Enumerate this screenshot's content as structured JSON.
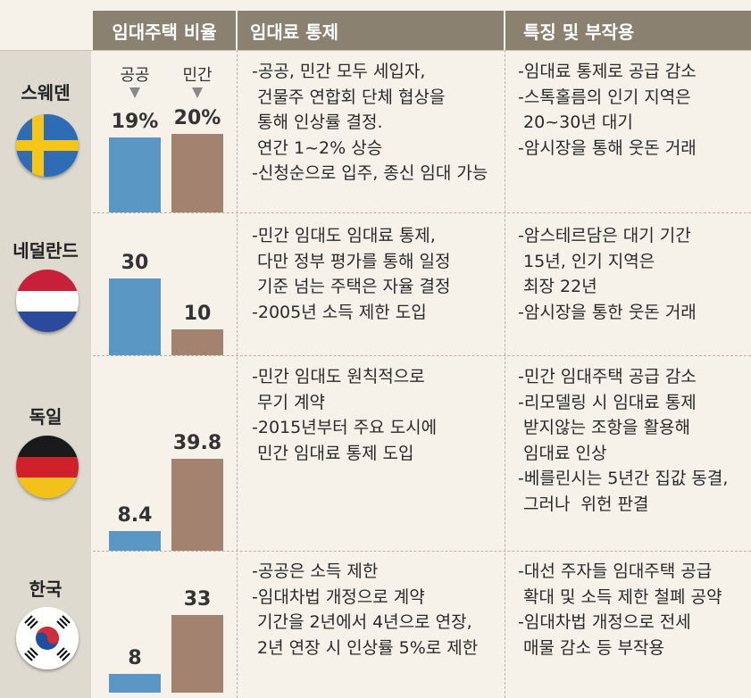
{
  "headers": {
    "col1": "임대주택 비율",
    "col2": "임대료 통제",
    "col3": "특징 및 부작용"
  },
  "legend": {
    "public": "공공",
    "private": "민간"
  },
  "colors": {
    "public": "#5a97c4",
    "private": "#a3826f",
    "header": "#8a8170"
  },
  "chart_data": {
    "type": "bar",
    "categories": [
      "스웨덴",
      "네덜란드",
      "독일",
      "한국"
    ],
    "series": [
      {
        "name": "공공",
        "values": [
          19,
          30,
          8.4,
          8
        ]
      },
      {
        "name": "민간",
        "values": [
          20,
          10,
          39.8,
          33
        ]
      }
    ],
    "labels": [
      {
        "public": "19%",
        "private": "20%"
      },
      {
        "public": "30",
        "private": "10"
      },
      {
        "public": "8.4",
        "private": "39.8"
      },
      {
        "public": "8",
        "private": "33"
      }
    ]
  },
  "rows": [
    {
      "country": "스웨덴",
      "flag": "sweden-flag-icon",
      "control": [
        "-공공, 민간 모두 세입자,",
        " 건물주 연합회 단체 협상을",
        " 통해 인상률 결정.",
        " 연간 1~2% 상승",
        "-신청순으로 입주, 종신 임대 가능"
      ],
      "effects": [
        "-임대료 통제로 공급 감소",
        "-스톡홀름의 인기 지역은",
        " 20~30년 대기",
        "-암시장을 통해 웃돈 거래"
      ]
    },
    {
      "country": "네덜란드",
      "flag": "netherlands-flag-icon",
      "control": [
        "-민간 임대도 임대료 통제,",
        " 다만 정부 평가를 통해 일정",
        " 기준 넘는 주택은 자율 결정",
        "-2005년 소득 제한 도입"
      ],
      "effects": [
        "-암스테르담은 대기 기간",
        " 15년, 인기 지역은",
        " 최장 22년",
        "-암시장을 통한 웃돈 거래"
      ]
    },
    {
      "country": "독일",
      "flag": "germany-flag-icon",
      "control": [
        "-민간 임대도 원칙적으로",
        " 무기 계약",
        "-2015년부터 주요 도시에",
        " 민간 임대료 통제 도입"
      ],
      "effects": [
        "-민간 임대주택 공급 감소",
        "-리모델링 시 임대료 통제",
        " 받지않는 조항을 활용해",
        " 임대료 인상",
        "-베를린시는 5년간 집값 동결,",
        " 그러나  위헌 판결"
      ]
    },
    {
      "country": "한국",
      "flag": "korea-flag-icon",
      "control": [
        "-공공은 소득 제한",
        "-임대차법 개정으로 계약",
        " 기간을 2년에서 4년으로 연장,",
        " 2년 연장 시 인상률 5%로 제한"
      ],
      "effects": [
        "-대선 주자들 임대주택 공급",
        " 확대 및 소득 제한 철폐 공약",
        "-임대차법 개정으로 전세",
        " 매물 감소 등 부작용"
      ]
    }
  ]
}
